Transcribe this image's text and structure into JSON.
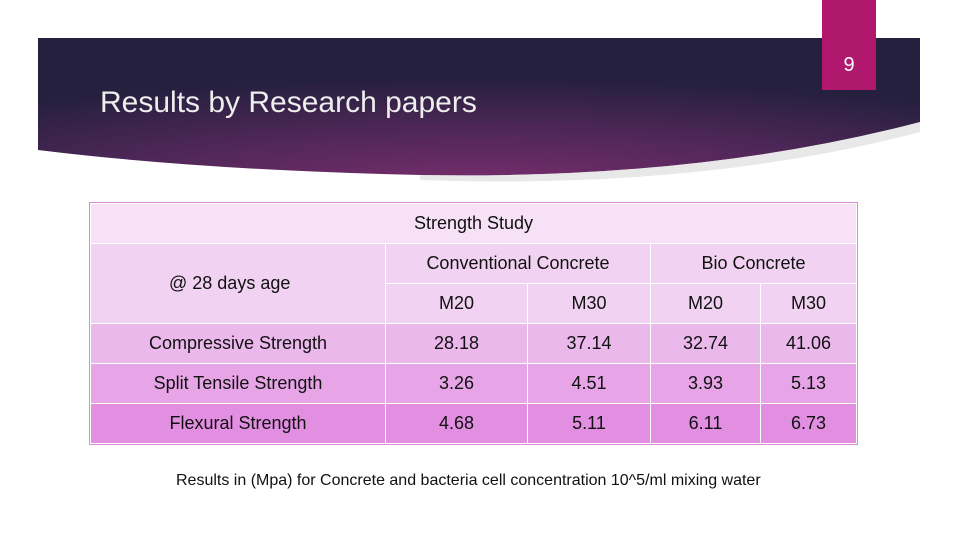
{
  "slide_number": "9",
  "title": "Results by Research papers",
  "table": {
    "header": "Strength Study",
    "row_label_header": "@ 28 days age",
    "groups": [
      "Conventional Concrete",
      "Bio Concrete"
    ],
    "subheaders": [
      "M20",
      "M30",
      "M20",
      "M30"
    ],
    "rows": [
      [
        "Compressive Strength",
        "28.18",
        "37.14",
        "32.74",
        "41.06"
      ],
      [
        "Split Tensile Strength",
        "3.26",
        "4.51",
        "3.93",
        "5.13"
      ],
      [
        "Flexural Strength",
        "4.68",
        "5.11",
        "6.11",
        "6.73"
      ]
    ]
  },
  "caption": "Results in (Mpa) for Concrete and bacteria cell concentration 10^5/ml mixing water"
}
